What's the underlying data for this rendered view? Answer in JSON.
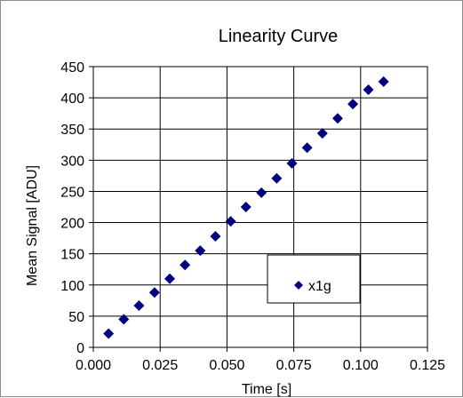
{
  "chart_data": {
    "type": "scatter",
    "title": "Linearity Curve",
    "xlabel": "Time [s]",
    "ylabel": "Mean Signal [ADU]",
    "xlim": [
      0,
      0.125
    ],
    "ylim": [
      0,
      450
    ],
    "xticks": [
      "0.000",
      "0.025",
      "0.050",
      "0.075",
      "0.100",
      "0.125"
    ],
    "yticks": [
      "0",
      "50",
      "100",
      "150",
      "200",
      "250",
      "300",
      "350",
      "400",
      "450"
    ],
    "xtick_values": [
      0,
      0.025,
      0.05,
      0.075,
      0.1,
      0.125
    ],
    "ytick_values": [
      0,
      50,
      100,
      150,
      200,
      250,
      300,
      350,
      400,
      450
    ],
    "grid": true,
    "legend_position": "lower-right",
    "series": [
      {
        "name": "x1g",
        "color": "#000080",
        "marker": "diamond",
        "x": [
          0.0057,
          0.0114,
          0.0171,
          0.0229,
          0.0286,
          0.0343,
          0.04,
          0.0457,
          0.0514,
          0.0571,
          0.0629,
          0.0686,
          0.0743,
          0.08,
          0.0857,
          0.0914,
          0.0971,
          0.1029,
          0.1086
        ],
        "y": [
          22,
          45,
          67,
          88,
          110,
          132,
          155,
          178,
          202,
          225,
          248,
          271,
          295,
          320,
          343,
          367,
          390,
          413,
          426
        ]
      }
    ]
  }
}
